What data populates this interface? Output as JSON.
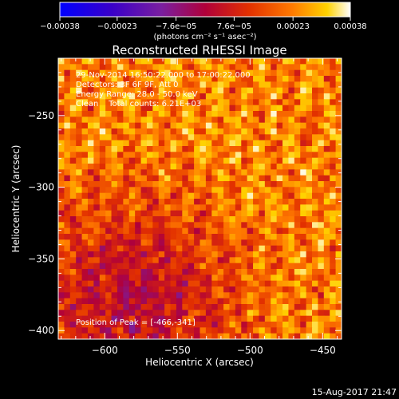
{
  "chart_data": {
    "type": "heatmap",
    "title": "Reconstructed RHESSI Image",
    "xlabel": "Heliocentric X (arcsec)",
    "ylabel": "Heliocentric Y (arcsec)",
    "xlim": [
      -632,
      -437
    ],
    "ylim": [
      -406,
      -210
    ],
    "x_ticks": [
      -600,
      -550,
      -500,
      -450
    ],
    "x_tick_labels": [
      "−600",
      "−550",
      "−500",
      "−450"
    ],
    "y_ticks": [
      -250,
      -300,
      -350,
      -400
    ],
    "y_tick_labels": [
      "−250",
      "−300",
      "−350",
      "−400"
    ],
    "colorbar": {
      "min": -0.00038,
      "max": 0.00038,
      "tick_values": [
        -0.00038,
        -0.00023,
        -7.6e-05,
        7.6e-05,
        0.00023,
        0.00038
      ],
      "tick_labels": [
        "−0.00038",
        "−0.00023",
        "−7.6e−05",
        "7.6e−05",
        "0.00023",
        "0.00038"
      ],
      "units_label": "(photons cm⁻² s⁻¹ asec⁻²)",
      "colormap": [
        "#0000ff",
        "#3a00c8",
        "#7a1fa0",
        "#b0003a",
        "#e23000",
        "#ff7a00",
        "#ffd200",
        "#ffffff"
      ]
    },
    "annotations": [
      "29-Nov-2014 16:50:22.000 to 17:00:22.000",
      "Detectors: 3F 6F 9F, Att 0",
      "Energy Range: 28.0 - 50.0 keV",
      "Clean    Total counts: 6.21E+03"
    ],
    "peak_label": "Position of Peak = [-466,-341]",
    "peak": {
      "x": -466,
      "y": -341
    },
    "grid": false
  },
  "footer": {
    "timestamp": "15-Aug-2017 21:47"
  }
}
